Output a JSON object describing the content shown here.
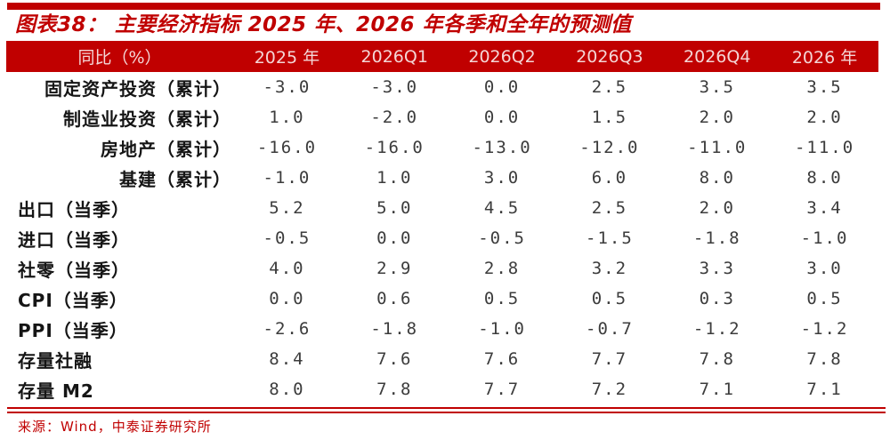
{
  "title": "图表38： 主要经济指标 2025 年、2026 年各季和全年的预测值",
  "chart_data": {
    "type": "table",
    "title": "主要经济指标2025年、2026年各季和全年的预测值",
    "columns": [
      "同比（%）",
      "2025 年",
      "2026Q1",
      "2026Q2",
      "2026Q3",
      "2026Q4",
      "2026 年"
    ],
    "rows": [
      {
        "label": "固定资产投资（累计）",
        "align": "right",
        "values": [
          "-3.0",
          "-3.0",
          "0.0",
          "2.5",
          "3.5",
          "3.5"
        ]
      },
      {
        "label": "制造业投资（累计）",
        "align": "right",
        "values": [
          "1.0",
          "-2.0",
          "0.0",
          "1.5",
          "2.0",
          "2.0"
        ]
      },
      {
        "label": "房地产（累计）",
        "align": "right",
        "values": [
          "-16.0",
          "-16.0",
          "-13.0",
          "-12.0",
          "-11.0",
          "-11.0"
        ]
      },
      {
        "label": "基建（累计）",
        "align": "right",
        "values": [
          "-1.0",
          "1.0",
          "3.0",
          "6.0",
          "8.0",
          "8.0"
        ]
      },
      {
        "label": "出口（当季）",
        "align": "left",
        "values": [
          "5.2",
          "5.0",
          "4.5",
          "2.5",
          "2.0",
          "3.4"
        ]
      },
      {
        "label": "进口（当季）",
        "align": "left",
        "values": [
          "-0.5",
          "0.0",
          "-0.5",
          "-1.5",
          "-1.8",
          "-1.0"
        ]
      },
      {
        "label": "社零（当季）",
        "align": "left",
        "values": [
          "4.0",
          "2.9",
          "2.8",
          "3.2",
          "3.3",
          "3.0"
        ]
      },
      {
        "label": "CPI（当季）",
        "align": "left",
        "values": [
          "0.0",
          "0.6",
          "0.5",
          "0.5",
          "0.3",
          "0.5"
        ]
      },
      {
        "label": "PPI（当季）",
        "align": "left",
        "values": [
          "-2.6",
          "-1.8",
          "-1.0",
          "-0.7",
          "-1.2",
          "-1.2"
        ]
      },
      {
        "label": "存量社融",
        "align": "left",
        "values": [
          "8.4",
          "7.6",
          "7.6",
          "7.7",
          "7.8",
          "7.8"
        ]
      },
      {
        "label": "存量 M2",
        "align": "left",
        "values": [
          "8.0",
          "7.8",
          "7.7",
          "7.2",
          "7.1",
          "7.1"
        ]
      }
    ]
  },
  "source": "来源：Wind，中泰证券研究所",
  "colors": {
    "accent": "#c00000",
    "header_text": "#f4d6d6",
    "label_text": "#151515",
    "value_text": "#3c3c3c"
  }
}
